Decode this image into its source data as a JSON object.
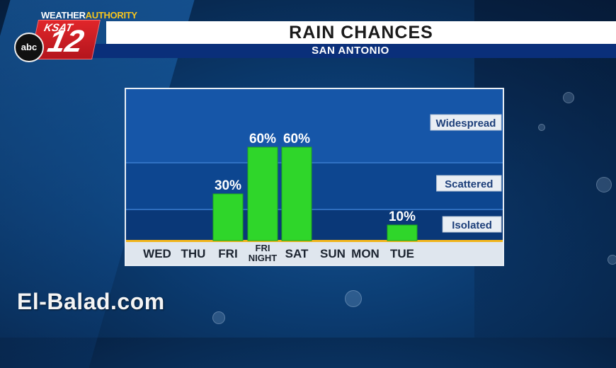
{
  "header": {
    "brand_prefix": "WEATHER",
    "brand_suffix": "AUTHORITY",
    "station_logo_text": "KSAT",
    "station_logo_number": "12",
    "network_logo": "abc",
    "title": "RAIN CHANCES",
    "subtitle": "SAN ANTONIO"
  },
  "watermark": "El-Balad.com",
  "colors": {
    "bar": "#2fd62a",
    "chart_bg": "#0c3f86",
    "axis_strip": "#dfe6ee",
    "title_bg": "#ffffff",
    "subtitle_bg": "#0a2f7a"
  },
  "chart_data": {
    "type": "bar",
    "title": "RAIN CHANCES",
    "subtitle": "SAN ANTONIO",
    "categories": [
      "WED",
      "THU",
      "FRI",
      "FRI NIGHT",
      "SAT",
      "SUN",
      "MON",
      "TUE"
    ],
    "category_lines": [
      [
        "WED"
      ],
      [
        "THU"
      ],
      [
        "FRI"
      ],
      [
        "FRI",
        "NIGHT"
      ],
      [
        "SAT"
      ],
      [
        "SUN"
      ],
      [
        "MON"
      ],
      [
        "TUE"
      ]
    ],
    "values": [
      0,
      0,
      30,
      60,
      60,
      0,
      0,
      10
    ],
    "value_labels": [
      "",
      "",
      "30%",
      "60%",
      "60%",
      "",
      "",
      "10%"
    ],
    "ylim": [
      0,
      100
    ],
    "levels": [
      {
        "name": "Isolated",
        "from": 0,
        "to": 20
      },
      {
        "name": "Scattered",
        "from": 20,
        "to": 50
      },
      {
        "name": "Widespread",
        "from": 50,
        "to": 100
      }
    ],
    "xlabel": "",
    "ylabel": ""
  }
}
